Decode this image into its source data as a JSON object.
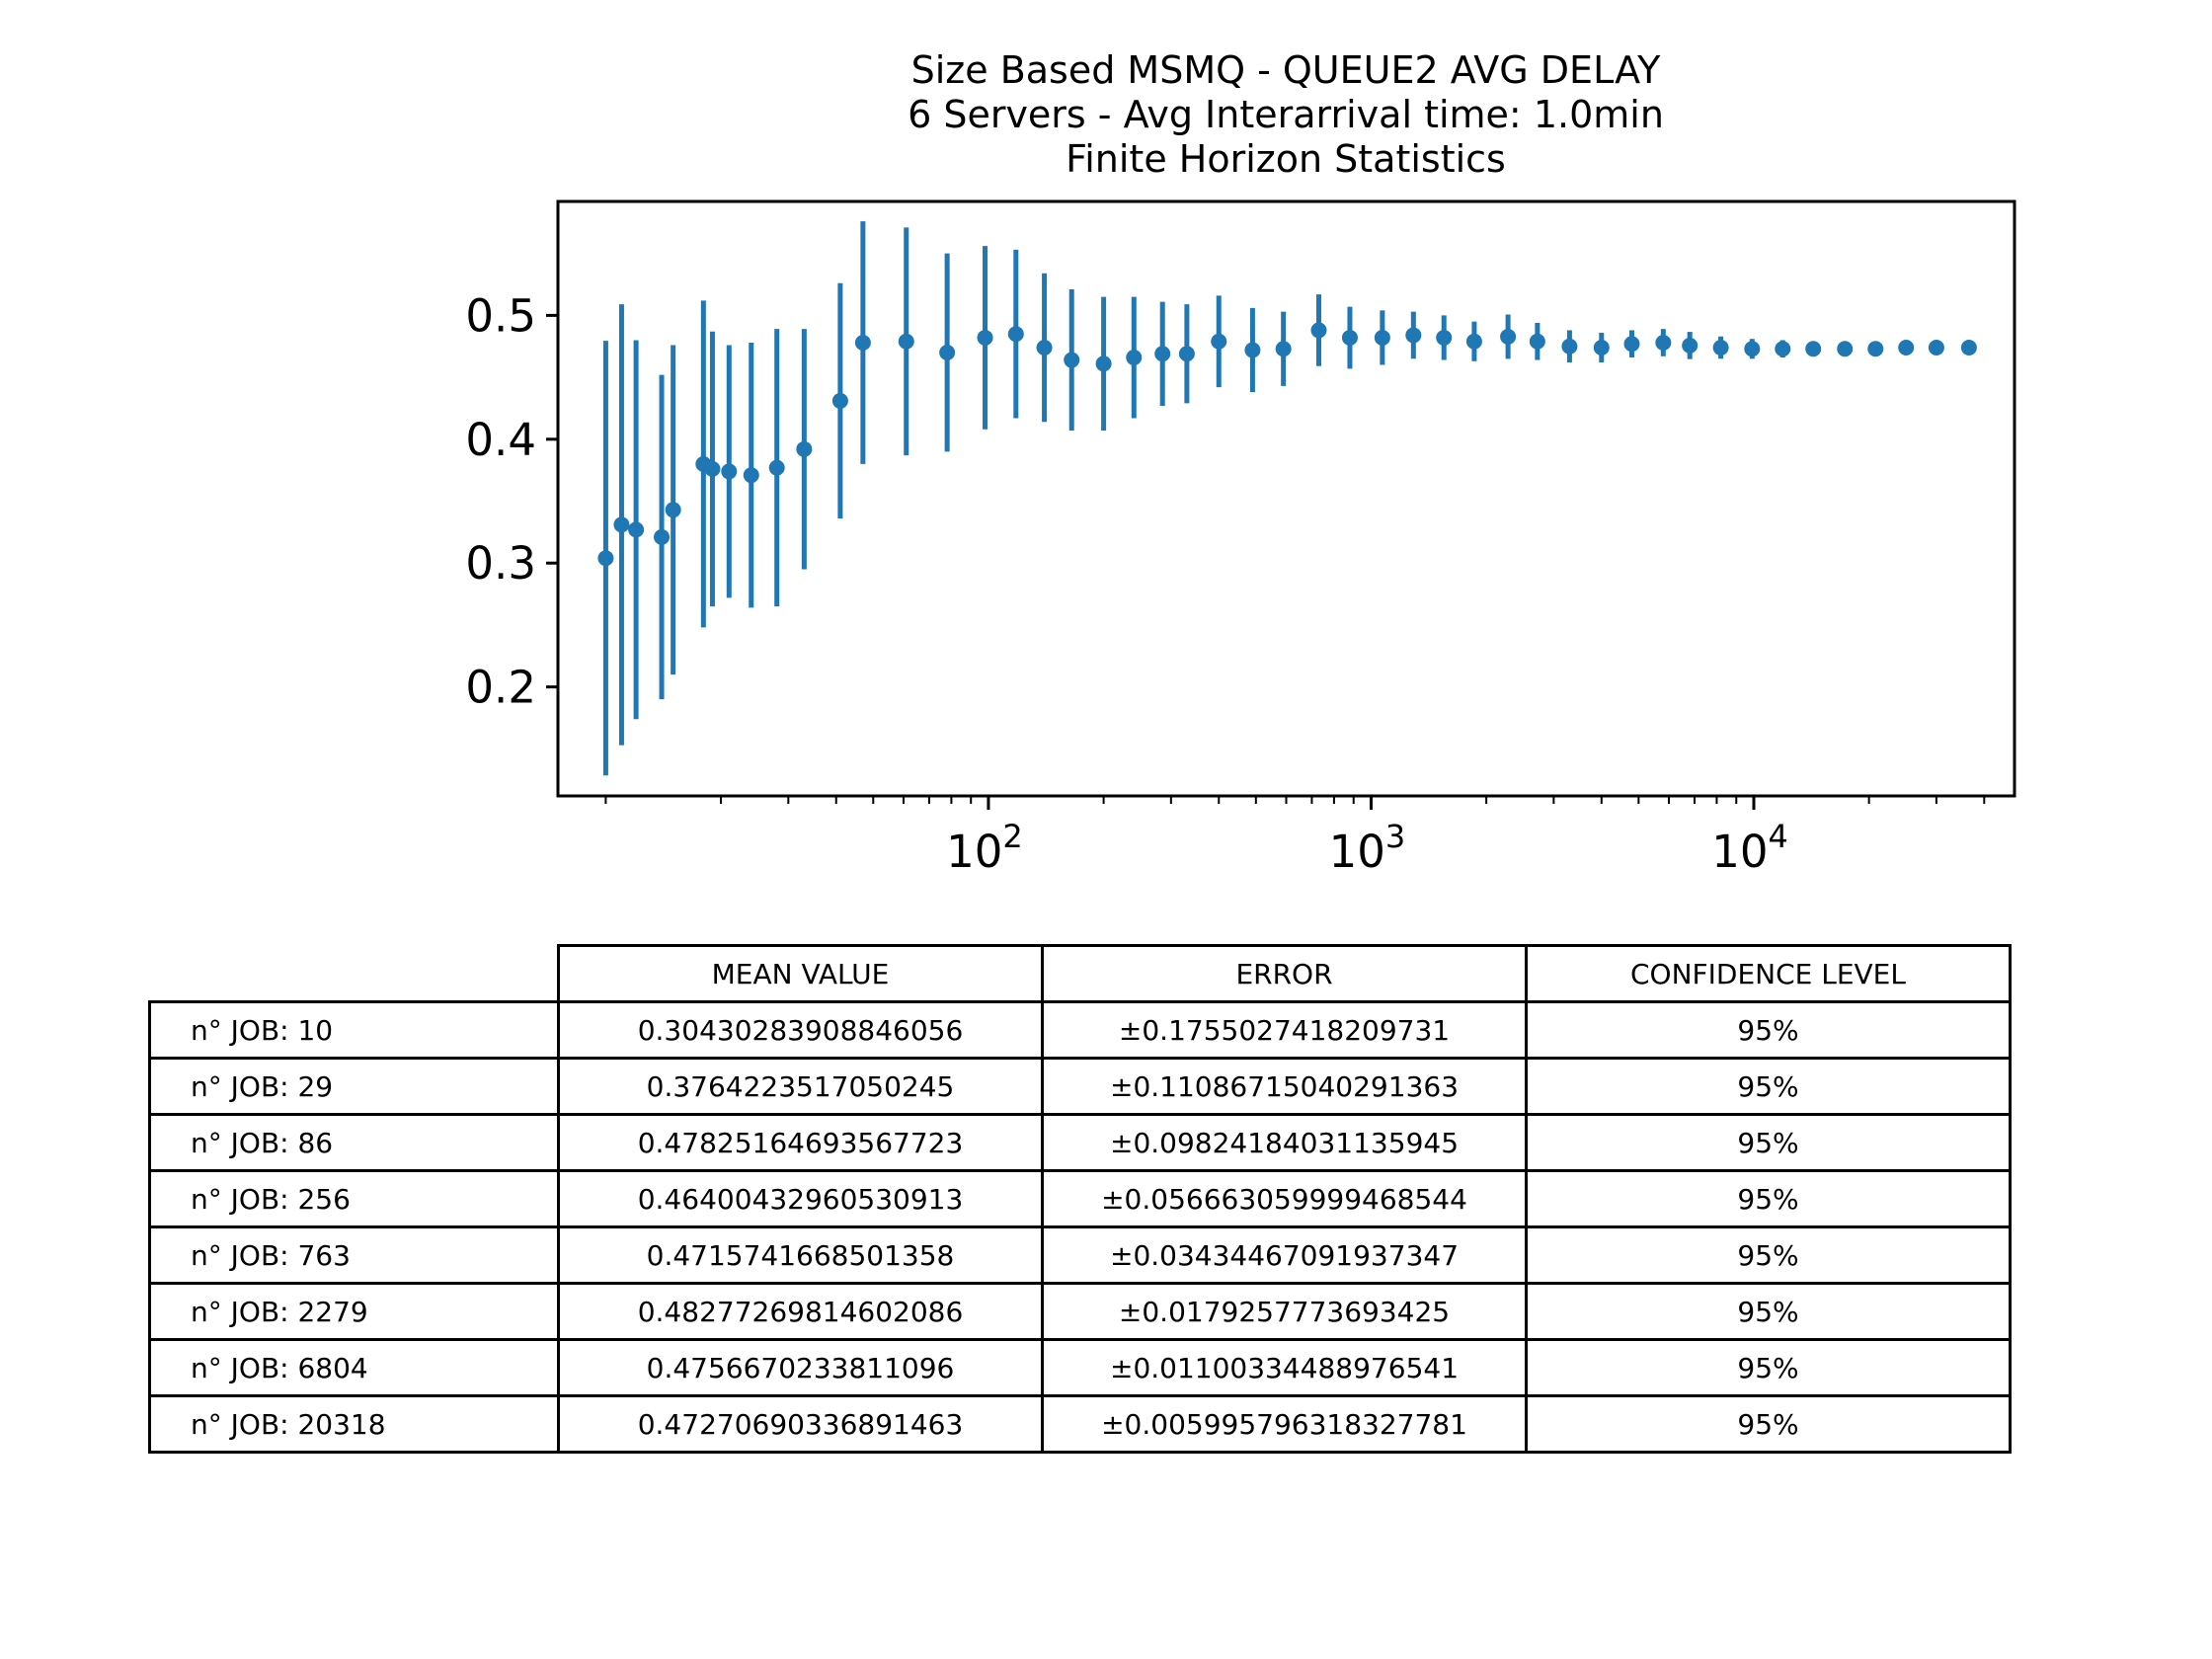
{
  "figure": {
    "title_lines": [
      "Size Based MSMQ - QUEUE2 AVG DELAY",
      "6 Servers -  Avg Interarrival time: 1.0min",
      "Finite Horizon Statistics"
    ],
    "series_color": "#1f77b4"
  },
  "chart_data": {
    "type": "scatter",
    "x_scale": "log",
    "xlim": [
      7.5,
      48000
    ],
    "ylim": [
      0.112,
      0.592
    ],
    "x_ticks": [
      {
        "value": 100,
        "base": "10",
        "exp": "2"
      },
      {
        "value": 1000,
        "base": "10",
        "exp": "3"
      },
      {
        "value": 10000,
        "base": "10",
        "exp": "4"
      }
    ],
    "y_ticks": [
      {
        "value": 0.2,
        "label": "0.2"
      },
      {
        "value": 0.3,
        "label": "0.3"
      },
      {
        "value": 0.4,
        "label": "0.4"
      },
      {
        "value": 0.5,
        "label": "0.5"
      }
    ],
    "grid": false,
    "points": [
      {
        "x": 10,
        "y": 0.304,
        "err": 0.1755
      },
      {
        "x": 11,
        "y": 0.331,
        "err": 0.178
      },
      {
        "x": 12,
        "y": 0.327,
        "err": 0.153
      },
      {
        "x": 14,
        "y": 0.321,
        "err": 0.131
      },
      {
        "x": 15,
        "y": 0.343,
        "err": 0.133
      },
      {
        "x": 18,
        "y": 0.38,
        "err": 0.132
      },
      {
        "x": 19,
        "y": 0.376,
        "err": 0.111
      },
      {
        "x": 21,
        "y": 0.374,
        "err": 0.102
      },
      {
        "x": 24,
        "y": 0.371,
        "err": 0.107
      },
      {
        "x": 28,
        "y": 0.377,
        "err": 0.112
      },
      {
        "x": 33,
        "y": 0.392,
        "err": 0.097
      },
      {
        "x": 41,
        "y": 0.431,
        "err": 0.095
      },
      {
        "x": 47,
        "y": 0.478,
        "err": 0.098
      },
      {
        "x": 61,
        "y": 0.479,
        "err": 0.092
      },
      {
        "x": 78,
        "y": 0.47,
        "err": 0.08
      },
      {
        "x": 98,
        "y": 0.482,
        "err": 0.074
      },
      {
        "x": 118,
        "y": 0.485,
        "err": 0.068
      },
      {
        "x": 140,
        "y": 0.474,
        "err": 0.06
      },
      {
        "x": 165,
        "y": 0.464,
        "err": 0.057
      },
      {
        "x": 200,
        "y": 0.461,
        "err": 0.054
      },
      {
        "x": 240,
        "y": 0.466,
        "err": 0.049
      },
      {
        "x": 285,
        "y": 0.469,
        "err": 0.042
      },
      {
        "x": 330,
        "y": 0.469,
        "err": 0.04
      },
      {
        "x": 400,
        "y": 0.479,
        "err": 0.037
      },
      {
        "x": 490,
        "y": 0.472,
        "err": 0.034
      },
      {
        "x": 590,
        "y": 0.473,
        "err": 0.03
      },
      {
        "x": 730,
        "y": 0.488,
        "err": 0.029
      },
      {
        "x": 880,
        "y": 0.482,
        "err": 0.025
      },
      {
        "x": 1070,
        "y": 0.482,
        "err": 0.022
      },
      {
        "x": 1290,
        "y": 0.484,
        "err": 0.019
      },
      {
        "x": 1550,
        "y": 0.482,
        "err": 0.018
      },
      {
        "x": 1860,
        "y": 0.479,
        "err": 0.016
      },
      {
        "x": 2279,
        "y": 0.4828,
        "err": 0.0179
      },
      {
        "x": 2720,
        "y": 0.479,
        "err": 0.015
      },
      {
        "x": 3300,
        "y": 0.475,
        "err": 0.013
      },
      {
        "x": 4000,
        "y": 0.474,
        "err": 0.012
      },
      {
        "x": 4800,
        "y": 0.477,
        "err": 0.011
      },
      {
        "x": 5800,
        "y": 0.478,
        "err": 0.011
      },
      {
        "x": 6804,
        "y": 0.4757,
        "err": 0.011
      },
      {
        "x": 8200,
        "y": 0.474,
        "err": 0.009
      },
      {
        "x": 9900,
        "y": 0.473,
        "err": 0.008
      },
      {
        "x": 11900,
        "y": 0.473,
        "err": 0.007
      },
      {
        "x": 14300,
        "y": 0.473,
        "err": 0.006
      },
      {
        "x": 17300,
        "y": 0.473,
        "err": 0.006
      },
      {
        "x": 20800,
        "y": 0.473,
        "err": 0.005
      },
      {
        "x": 25000,
        "y": 0.474,
        "err": 0.005
      },
      {
        "x": 30000,
        "y": 0.474,
        "err": 0.004
      },
      {
        "x": 36500,
        "y": 0.474,
        "err": 0.004
      }
    ]
  },
  "table": {
    "headers": [
      "MEAN VALUE",
      "ERROR",
      "CONFIDENCE LEVEL"
    ],
    "rows": [
      {
        "label": "n° JOB: 10",
        "mean": "0.30430283908846056",
        "error": "±0.1755027418209731",
        "confidence": "95%"
      },
      {
        "label": "n° JOB: 29",
        "mean": "0.3764223517050245",
        "error": "±0.11086715040291363",
        "confidence": "95%"
      },
      {
        "label": "n° JOB: 86",
        "mean": "0.47825164693567723",
        "error": "±0.09824184031135945",
        "confidence": "95%"
      },
      {
        "label": "n° JOB: 256",
        "mean": "0.46400432960530913",
        "error": "±0.056663059999468544",
        "confidence": "95%"
      },
      {
        "label": "n° JOB: 763",
        "mean": "0.4715741668501358",
        "error": "±0.03434467091937347",
        "confidence": "95%"
      },
      {
        "label": "n° JOB: 2279",
        "mean": "0.48277269814602086",
        "error": "±0.0179257773693425",
        "confidence": "95%"
      },
      {
        "label": "n° JOB: 6804",
        "mean": "0.4756670233811096",
        "error": "±0.01100334488976541",
        "confidence": "95%"
      },
      {
        "label": "n° JOB: 20318",
        "mean": "0.47270690336891463",
        "error": "±0.005995796318327781",
        "confidence": "95%"
      }
    ]
  }
}
